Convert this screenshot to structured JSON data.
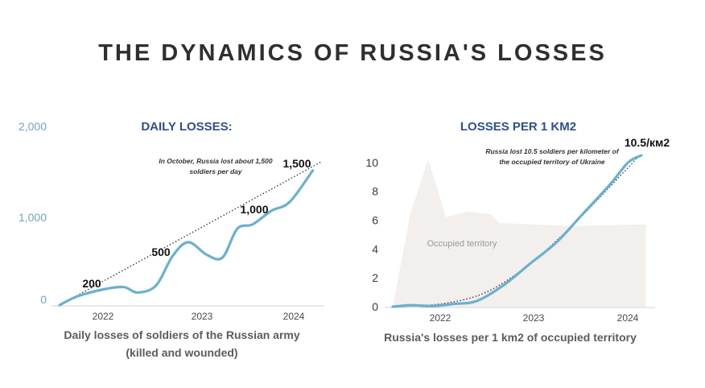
{
  "title": "THE DYNAMICS OF RUSSIA'S LOSSES",
  "colors": {
    "title": "#2f2f2f",
    "subtitle": "#2e4f8a",
    "line": "#6bb0cf",
    "trend": "#3a3a3a",
    "left_tick": "#6ca6bf",
    "area": "#f2efed",
    "caption": "#5c5c5c"
  },
  "chart_data": [
    {
      "type": "line",
      "title": "DAILY LOSSES:",
      "caption_lines": [
        "Daily losses of soldiers of the Russian army",
        "(killed and wounded)"
      ],
      "x_ticks": [
        "2022",
        "2023",
        "2024"
      ],
      "y_ticks": [
        "0",
        "1,000",
        "2,000"
      ],
      "xlim": [
        2021.45,
        2024.3
      ],
      "ylim": [
        0,
        2000
      ],
      "annotation": [
        "In October, Russia lost about 1,500",
        "soldiers per day"
      ],
      "data_labels": [
        {
          "text": "200",
          "x": 2021.95,
          "y": 200
        },
        {
          "text": "500",
          "x": 2022.55,
          "y": 500
        },
        {
          "text": "1,000",
          "x": 2023.55,
          "y": 1000
        },
        {
          "text": "1,500",
          "x": 2024.12,
          "y": 1500
        }
      ],
      "series": [
        {
          "values": [
            {
              "x": 2021.45,
              "y": 0
            },
            {
              "x": 2021.65,
              "y": 100
            },
            {
              "x": 2021.95,
              "y": 180
            },
            {
              "x": 2022.15,
              "y": 200
            },
            {
              "x": 2022.3,
              "y": 140
            },
            {
              "x": 2022.5,
              "y": 220
            },
            {
              "x": 2022.68,
              "y": 550
            },
            {
              "x": 2022.85,
              "y": 700
            },
            {
              "x": 2023.05,
              "y": 560
            },
            {
              "x": 2023.22,
              "y": 530
            },
            {
              "x": 2023.38,
              "y": 850
            },
            {
              "x": 2023.55,
              "y": 900
            },
            {
              "x": 2023.75,
              "y": 1050
            },
            {
              "x": 2023.95,
              "y": 1150
            },
            {
              "x": 2024.2,
              "y": 1500
            }
          ]
        }
      ],
      "trend": [
        {
          "x": 2021.45,
          "y": 0
        },
        {
          "x": 2024.3,
          "y": 1600
        }
      ]
    },
    {
      "type": "line",
      "title": "LOSSES PER 1 KM2",
      "caption_lines": [
        "Russia's losses per 1 km2 of occupied territory"
      ],
      "x_ticks": [
        "2022",
        "2023",
        "2024"
      ],
      "y_ticks": [
        "0",
        "2",
        "4",
        "6",
        "8",
        "10"
      ],
      "xlim": [
        2021.45,
        2024.35
      ],
      "ylim": [
        0,
        11
      ],
      "annotation": [
        "Russia lost 10.5 soldiers per kilometer of",
        "the occupied territory of Ukraine"
      ],
      "data_labels": [
        {
          "text": "10.5/км2",
          "x": 2024.2,
          "y": 10.5
        }
      ],
      "area_label": "Occupied territory",
      "area": [
        {
          "x": 2021.45,
          "y": 0
        },
        {
          "x": 2021.65,
          "y": 6.5
        },
        {
          "x": 2021.85,
          "y": 10.2
        },
        {
          "x": 2022.05,
          "y": 6.2
        },
        {
          "x": 2022.3,
          "y": 6.6
        },
        {
          "x": 2022.55,
          "y": 6.4
        },
        {
          "x": 2022.65,
          "y": 5.8
        },
        {
          "x": 2023.05,
          "y": 5.7
        },
        {
          "x": 2023.5,
          "y": 5.6
        },
        {
          "x": 2024.2,
          "y": 5.7
        },
        {
          "x": 2024.3,
          "y": 5.7
        },
        {
          "x": 2024.3,
          "y": 0
        }
      ],
      "series": [
        {
          "values": [
            {
              "x": 2021.45,
              "y": 0
            },
            {
              "x": 2021.65,
              "y": 0.1
            },
            {
              "x": 2021.9,
              "y": 0.05
            },
            {
              "x": 2022.15,
              "y": 0.2
            },
            {
              "x": 2022.4,
              "y": 0.4
            },
            {
              "x": 2022.7,
              "y": 1.5
            },
            {
              "x": 2023.0,
              "y": 3.0
            },
            {
              "x": 2023.3,
              "y": 4.5
            },
            {
              "x": 2023.6,
              "y": 6.5
            },
            {
              "x": 2023.9,
              "y": 8.5
            },
            {
              "x": 2024.1,
              "y": 10.0
            },
            {
              "x": 2024.25,
              "y": 10.5
            }
          ]
        }
      ],
      "trend": [
        {
          "x": 2021.45,
          "y": 0
        },
        {
          "x": 2022.0,
          "y": 0.2
        },
        {
          "x": 2022.5,
          "y": 1.0
        },
        {
          "x": 2023.0,
          "y": 3.0
        },
        {
          "x": 2023.5,
          "y": 5.8
        },
        {
          "x": 2024.0,
          "y": 9.0
        },
        {
          "x": 2024.2,
          "y": 10.3
        }
      ]
    }
  ]
}
